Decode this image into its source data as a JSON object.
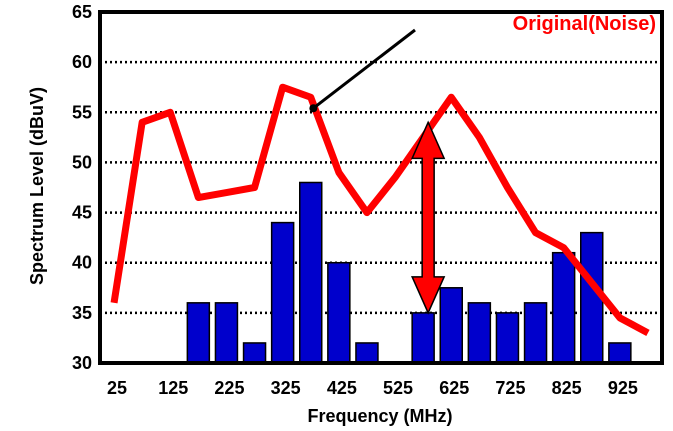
{
  "chart_data": {
    "type": "bar",
    "xlabel": "Frequency (MHz)",
    "ylabel": "Spectrum Level (dBuV)",
    "ylim": [
      30,
      65
    ],
    "yticks": [
      30,
      35,
      40,
      45,
      50,
      55,
      60,
      65
    ],
    "xticks": [
      25,
      125,
      225,
      325,
      425,
      525,
      625,
      725,
      825,
      925
    ],
    "grid": "horizontal dotted",
    "bars": {
      "x": [
        175,
        225,
        275,
        325,
        375,
        425,
        475,
        525,
        575,
        625,
        675,
        725,
        775,
        825,
        875,
        925
      ],
      "values": [
        36,
        36,
        32,
        44,
        48,
        40,
        32,
        null,
        35,
        37.5,
        36,
        35,
        36,
        41,
        43,
        32
      ],
      "color": "#0000cc"
    },
    "line": {
      "name": "Original(Noise)",
      "x": [
        25,
        75,
        125,
        175,
        225,
        275,
        325,
        375,
        425,
        475,
        525,
        575,
        625,
        675,
        725,
        775,
        825,
        875,
        925,
        975
      ],
      "values": [
        36,
        54,
        55,
        46.5,
        47,
        47.5,
        57.5,
        56.5,
        49,
        45,
        48.5,
        52.5,
        56.5,
        52.5,
        47.5,
        43,
        41.5,
        38,
        34.5,
        33
      ],
      "color": "#ff0000"
    },
    "annotation": {
      "text": "Original(Noise)",
      "target_x": 385,
      "target_y": 56.5
    },
    "arrow": {
      "x": 575,
      "from": 54,
      "to": 35,
      "color": "#ff0000"
    }
  }
}
